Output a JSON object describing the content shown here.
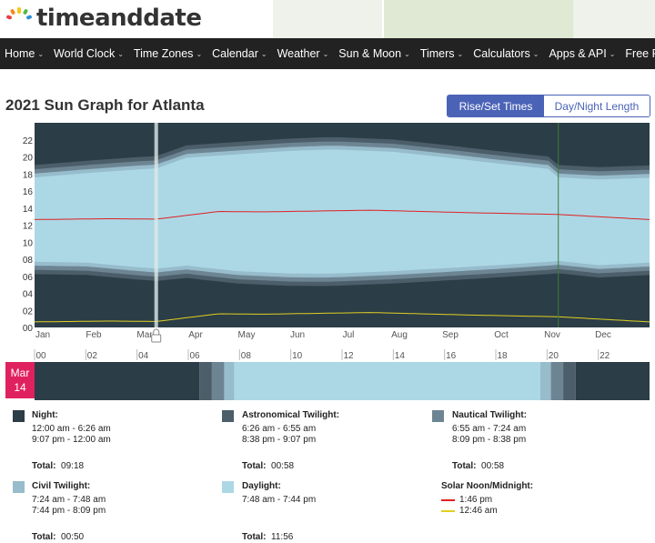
{
  "brand": {
    "name": "timeanddate"
  },
  "nav": {
    "items": [
      {
        "label": "Home"
      },
      {
        "label": "World Clock"
      },
      {
        "label": "Time Zones"
      },
      {
        "label": "Calendar"
      },
      {
        "label": "Weather"
      },
      {
        "label": "Sun & Moon"
      },
      {
        "label": "Timers"
      },
      {
        "label": "Calculators"
      },
      {
        "label": "Apps & API"
      },
      {
        "label": "Free Fun"
      }
    ]
  },
  "page": {
    "title": "2021 Sun Graph for Atlanta"
  },
  "view_toggle": {
    "active": "Rise/Set Times",
    "inactive": "Day/Night Length"
  },
  "colors": {
    "night": "#2b3d47",
    "astronomical": "#4b5e69",
    "nautical": "#6d8593",
    "civil": "#97bccc",
    "daylight": "#acd8e6",
    "solar_noon": "#e02020",
    "solar_midnight": "#e0d020",
    "accent": "#4b63b7",
    "date_badge": "#e0215f"
  },
  "chart_data": [
    {
      "type": "area",
      "title": "2021 Sun Graph for Atlanta",
      "x_labels": [
        "Jan",
        "Feb",
        "Mar",
        "Apr",
        "May",
        "Jun",
        "Jul",
        "Aug",
        "Sep",
        "Oct",
        "Nov",
        "Dec"
      ],
      "y_ticks": [
        "00",
        "02",
        "04",
        "06",
        "08",
        "10",
        "12",
        "14",
        "16",
        "18",
        "20",
        "22"
      ],
      "ylim": [
        0,
        24
      ],
      "dst_start_day": 73,
      "dst_end_day": 311,
      "series": [
        {
          "name": "Sunrise",
          "x": [
            1,
            32,
            60,
            73,
            91,
            121,
            152,
            172,
            182,
            213,
            244,
            274,
            305,
            311,
            335,
            365
          ],
          "y": [
            7.7,
            7.6,
            7.1,
            6.9,
            7.25,
            6.6,
            6.33,
            6.3,
            6.35,
            6.6,
            6.95,
            7.3,
            7.7,
            7.8,
            7.3,
            7.6
          ]
        },
        {
          "name": "Sunset",
          "x": [
            1,
            32,
            60,
            73,
            91,
            121,
            152,
            172,
            182,
            213,
            244,
            274,
            305,
            311,
            335,
            365
          ],
          "y": [
            17.6,
            18.1,
            18.5,
            18.65,
            19.9,
            20.3,
            20.7,
            20.85,
            20.85,
            20.6,
            19.95,
            19.25,
            18.6,
            17.6,
            17.35,
            17.55
          ]
        },
        {
          "name": "Solar Noon",
          "x": [
            1,
            45,
            73,
            110,
            135,
            200,
            260,
            311,
            365
          ],
          "y": [
            12.65,
            12.75,
            12.7,
            13.6,
            13.55,
            13.75,
            13.45,
            13.25,
            12.65
          ]
        },
        {
          "name": "Solar Midnight",
          "x": [
            1,
            45,
            73,
            110,
            135,
            200,
            260,
            311,
            365
          ],
          "y": [
            0.65,
            0.75,
            0.7,
            1.6,
            1.55,
            1.75,
            1.45,
            1.25,
            0.65
          ]
        }
      ]
    },
    {
      "type": "bar",
      "title": "Mar 14",
      "x_ticks": [
        "00",
        "02",
        "04",
        "06",
        "08",
        "10",
        "12",
        "14",
        "16",
        "18",
        "20",
        "22"
      ],
      "segments": [
        {
          "phase": "night",
          "from": 0.0,
          "to": 6.43
        },
        {
          "phase": "astronomical",
          "from": 6.43,
          "to": 6.92
        },
        {
          "phase": "nautical",
          "from": 6.92,
          "to": 7.4
        },
        {
          "phase": "civil",
          "from": 7.4,
          "to": 7.8
        },
        {
          "phase": "daylight",
          "from": 7.8,
          "to": 19.73
        },
        {
          "phase": "civil",
          "from": 19.73,
          "to": 20.15
        },
        {
          "phase": "nautical",
          "from": 20.15,
          "to": 20.63
        },
        {
          "phase": "astronomical",
          "from": 20.63,
          "to": 21.12
        },
        {
          "phase": "night",
          "from": 21.12,
          "to": 24.0
        }
      ]
    }
  ],
  "day_badge": {
    "month": "Mar",
    "day": "14"
  },
  "legend": {
    "night": {
      "title": "Night:",
      "lines": [
        "12:00 am - 6:26 am",
        "9:07 pm - 12:00 am"
      ],
      "total": "Total:",
      "total_value": "09:18"
    },
    "astronomical": {
      "title": "Astronomical Twilight:",
      "lines": [
        "6:26 am - 6:55 am",
        "8:38 pm - 9:07 pm"
      ],
      "total": "Total:",
      "total_value": "00:58"
    },
    "nautical": {
      "title": "Nautical Twilight:",
      "lines": [
        "6:55 am - 7:24 am",
        "8:09 pm - 8:38 pm"
      ],
      "total": "Total:",
      "total_value": "00:58"
    },
    "civil": {
      "title": "Civil Twilight:",
      "lines": [
        "7:24 am - 7:48 am",
        "7:44 pm - 8:09 pm"
      ],
      "total": "Total:",
      "total_value": "00:50"
    },
    "daylight": {
      "title": "Daylight:",
      "lines": [
        "7:48 am - 7:44 pm"
      ],
      "total": "Total:",
      "total_value": "11:56"
    },
    "solar": {
      "title": "Solar Noon/Midnight:",
      "noon": "1:46 pm",
      "midnight": "12:46 am"
    }
  }
}
